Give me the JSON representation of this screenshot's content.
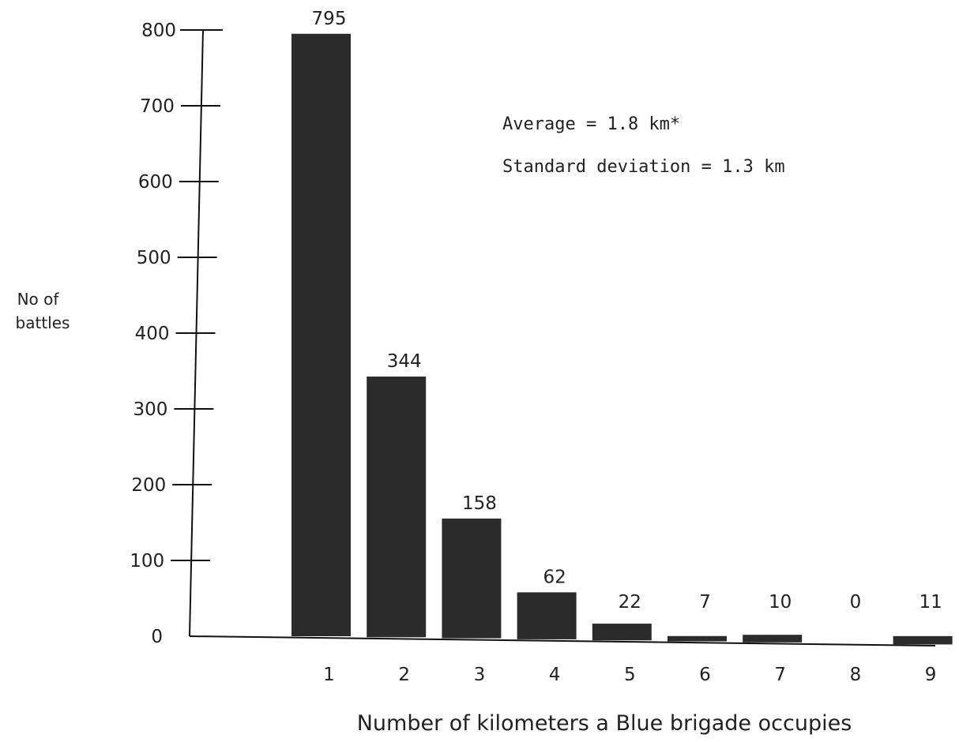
{
  "chart_data": {
    "type": "bar",
    "categories": [
      "1",
      "2",
      "3",
      "4",
      "5",
      "6",
      "7",
      "8",
      "9"
    ],
    "values": [
      795,
      344,
      158,
      62,
      22,
      7,
      10,
      0,
      11
    ],
    "data_labels": [
      "795",
      "344",
      "158",
      "62",
      "22",
      "7",
      "10",
      "0",
      "11"
    ],
    "title": "",
    "ylabel": [
      "No of",
      "battles"
    ],
    "xlabel": "Number of kilometers a Blue brigade occupies",
    "yticks": [
      0,
      100,
      200,
      300,
      400,
      500,
      600,
      700,
      800
    ],
    "ytick_labels": [
      "0",
      "100",
      "200",
      "300",
      "400",
      "500",
      "600",
      "700",
      "800"
    ],
    "ylim": [
      0,
      900
    ],
    "annotations": [
      "Average = 1.8 km*",
      "Standard deviation = 1.3 km"
    ],
    "bar_color": "#2b2b2b",
    "grid": false
  }
}
